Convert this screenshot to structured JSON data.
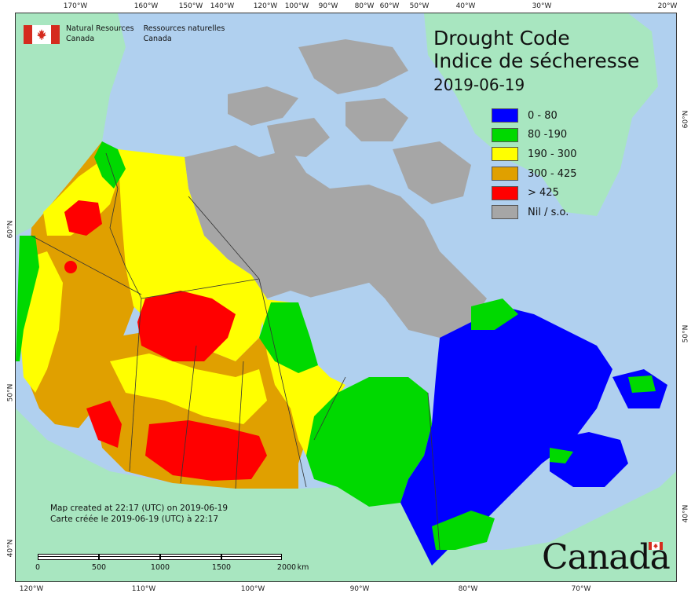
{
  "agency": {
    "name_en_line1": "Natural Resources",
    "name_en_line2": "Canada",
    "name_fr_line1": "Ressources naturelles",
    "name_fr_line2": "Canada"
  },
  "title": {
    "en": "Drought Code",
    "fr": "Indice de sécheresse",
    "date": "2019-06-19"
  },
  "legend": [
    {
      "label": "0 - 80",
      "color": "#0000ff"
    },
    {
      "label": "80 -190",
      "color": "#00d900"
    },
    {
      "label": "190 - 300",
      "color": "#ffff00"
    },
    {
      "label": "300 - 425",
      "color": "#e0a000"
    },
    {
      "label": "> 425",
      "color": "#ff0000"
    },
    {
      "label": "Nil / s.o.",
      "color": "#a6a6a6"
    }
  ],
  "credits": {
    "en": "Map created at 22:17 (UTC) on 2019-06-19",
    "fr": "Carte créée le 2019-06-19 (UTC) à 22:17"
  },
  "scale": {
    "ticks": [
      "0",
      "500",
      "1000",
      "1500",
      "2000"
    ],
    "unit": "km"
  },
  "graticule": {
    "top_labels": [
      "170°W",
      "160°W",
      "150°W",
      "140°W",
      "120°W",
      "100°W",
      "90°W",
      "80°W",
      "60°W",
      "50°W",
      "40°W",
      "30°W",
      "20°W"
    ],
    "bottom_labels": [
      "120°W",
      "110°W",
      "100°W",
      "90°W",
      "80°W",
      "70°W"
    ],
    "left_labels": [
      "60°N",
      "50°N",
      "40°N"
    ],
    "right_labels": [
      "60°N",
      "50°N",
      "40°N"
    ]
  },
  "wordmark": "Canada",
  "colors": {
    "water": "#b0d0ef",
    "foreign_land": "#a8e6c0",
    "nil": "#a6a6a6",
    "flag_red": "#d52b1e"
  }
}
